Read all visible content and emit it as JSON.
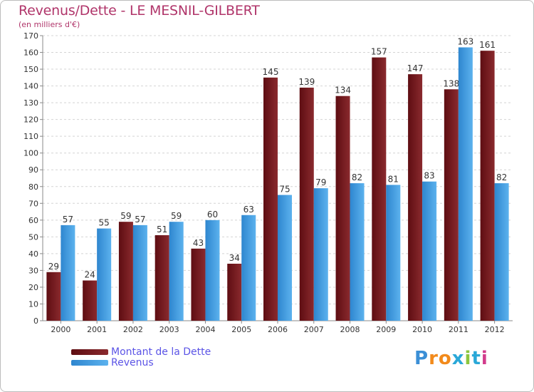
{
  "title": "Revenus/Dette - LE MESNIL-GILBERT",
  "subtitle": "(en milliers d'€)",
  "colors": {
    "debt": "#7a1a1e",
    "revenue": "#3f9ce0",
    "title": "#b0356a",
    "legend_text": "#5b54e6"
  },
  "logo": {
    "letters": [
      "P",
      "r",
      "o",
      "x",
      "i",
      "t",
      "i"
    ],
    "letter_colors": [
      "#3b8fd6",
      "#f28a1b",
      "#f28a1b",
      "#2aa8d8",
      "#8cc63f",
      "#2aa8d8",
      "#d23b8c"
    ]
  },
  "chart_data": {
    "type": "bar",
    "title": "Revenus/Dette - LE MESNIL-GILBERT",
    "subtitle": "(en milliers d'€)",
    "categories": [
      "2000",
      "2001",
      "2002",
      "2003",
      "2004",
      "2005",
      "2006",
      "2007",
      "2008",
      "2009",
      "2010",
      "2011",
      "2012"
    ],
    "series": [
      {
        "name": "Montant de la Dette",
        "values": [
          29,
          24,
          59,
          51,
          43,
          34,
          145,
          139,
          134,
          157,
          147,
          138,
          161
        ]
      },
      {
        "name": "Revenus",
        "values": [
          57,
          55,
          57,
          59,
          60,
          63,
          75,
          79,
          82,
          81,
          83,
          163,
          82
        ]
      }
    ],
    "ylim": [
      0,
      170
    ],
    "yticks": [
      0,
      10,
      20,
      30,
      40,
      50,
      60,
      70,
      80,
      90,
      100,
      110,
      120,
      130,
      140,
      150,
      160,
      170
    ],
    "grid": true,
    "legend_position": "bottom-left"
  }
}
